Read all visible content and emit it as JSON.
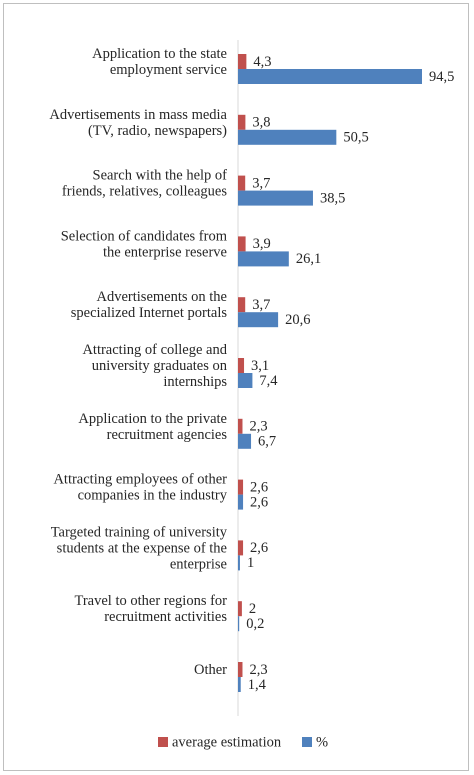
{
  "chart_data": {
    "type": "bar",
    "orientation": "horizontal",
    "categories": [
      [
        "Application to the state",
        "employment service"
      ],
      [
        "Advertisements in mass media",
        "(TV, radio, newspapers)"
      ],
      [
        "Search with the help of",
        "friends, relatives, colleagues"
      ],
      [
        "Selection of candidates from",
        "the enterprise reserve"
      ],
      [
        "Advertisements on the",
        "specialized Internet portals"
      ],
      [
        "Attracting of college and",
        "university graduates on",
        "internships"
      ],
      [
        "Application to the private",
        "recruitment agencies"
      ],
      [
        "Attracting employees of other",
        "companies in the industry"
      ],
      [
        "Targeted training of university",
        "students at the expense of the",
        "enterprise"
      ],
      [
        "Travel to other regions for",
        "recruitment activities"
      ],
      [
        "Other"
      ]
    ],
    "series": [
      {
        "name": "average estimation",
        "color": "#c0504d",
        "values": [
          4.3,
          3.8,
          3.7,
          3.9,
          3.7,
          3.1,
          2.3,
          2.6,
          2.6,
          2,
          2.3
        ],
        "labels": [
          "4,3",
          "3,8",
          "3,7",
          "3,9",
          "3,7",
          "3,1",
          "2,3",
          "2,6",
          "2,6",
          "2",
          "2,3"
        ]
      },
      {
        "name": "%",
        "color": "#4f81bd",
        "values": [
          94.5,
          50.5,
          38.5,
          26.1,
          20.6,
          7.4,
          6.7,
          2.6,
          1,
          0.2,
          1.4
        ],
        "labels": [
          "94,5",
          "50,5",
          "38,5",
          "26,1",
          "20,6",
          "7,4",
          "6,7",
          "2,6",
          "1",
          "0,2",
          "1,4"
        ]
      }
    ],
    "legend": "bottom",
    "grid": false
  }
}
